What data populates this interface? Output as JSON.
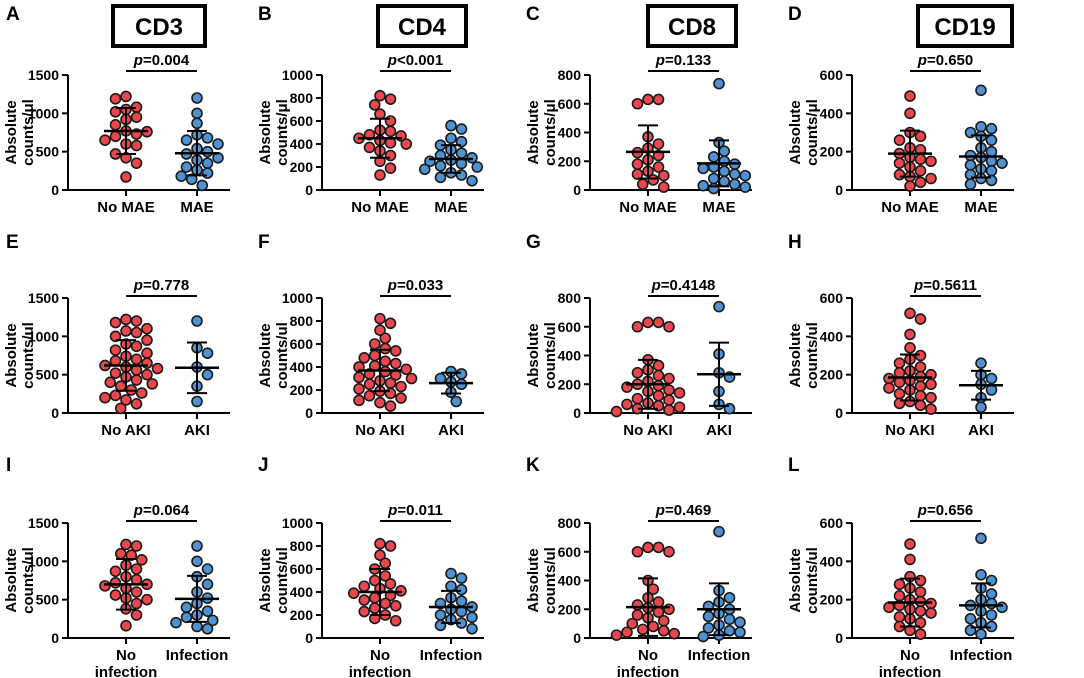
{
  "figure": {
    "markers": [
      "CD3",
      "CD4",
      "CD8",
      "CD19"
    ],
    "colors": {
      "group_a": "#e8474d",
      "group_b": "#4f92d1",
      "stroke": "#1a1a1a",
      "axis": "#000000"
    }
  },
  "chart_data": [
    {
      "panel": "A",
      "type": "scatter",
      "title": "CD3",
      "ylabel": [
        "Absolute",
        "counts/μl"
      ],
      "ylim": [
        0,
        1500
      ],
      "yticks": [
        "0",
        "500",
        "1000",
        "1500"
      ],
      "categories": [
        [
          "No MAE"
        ],
        [
          "MAE"
        ]
      ],
      "pvalue": "=0.004",
      "series": [
        {
          "name": "No MAE",
          "mean": 770,
          "sd": 300,
          "values": [
            1220,
            1050,
            1080,
            1020,
            1190,
            950,
            920,
            850,
            770,
            730,
            760,
            700,
            650,
            600,
            580,
            420,
            470,
            350,
            170
          ]
        },
        {
          "name": "MAE",
          "mean": 480,
          "sd": 290,
          "values": [
            1200,
            1000,
            870,
            720,
            680,
            650,
            600,
            540,
            500,
            470,
            420,
            390,
            350,
            300,
            260,
            220,
            180,
            140,
            60
          ]
        }
      ]
    },
    {
      "panel": "B",
      "type": "scatter",
      "title": "CD4",
      "ylabel": [
        "Absolute",
        "counts/μl"
      ],
      "ylim": [
        0,
        1000
      ],
      "yticks": [
        "0",
        "200",
        "400",
        "600",
        "800",
        "1000"
      ],
      "categories": [
        [
          "No MAE"
        ],
        [
          "MAE"
        ]
      ],
      "pvalue": "<0.001",
      "series": [
        {
          "name": "No MAE",
          "mean": 450,
          "sd": 170,
          "values": [
            820,
            790,
            740,
            660,
            600,
            520,
            510,
            480,
            470,
            450,
            430,
            410,
            400,
            370,
            340,
            300,
            250,
            190,
            130
          ]
        },
        {
          "name": "MAE",
          "mean": 270,
          "sd": 120,
          "values": [
            560,
            530,
            450,
            420,
            390,
            350,
            320,
            300,
            280,
            260,
            250,
            230,
            210,
            200,
            180,
            150,
            130,
            110,
            80
          ]
        }
      ]
    },
    {
      "panel": "C",
      "type": "scatter",
      "title": "CD8",
      "ylabel": [
        "Absolute",
        "counts/μl"
      ],
      "ylim": [
        0,
        800
      ],
      "yticks": [
        "0",
        "200",
        "400",
        "600",
        "800"
      ],
      "categories": [
        [
          "No MAE"
        ],
        [
          "MAE"
        ]
      ],
      "pvalue": "=0.133",
      "series": [
        {
          "name": "No MAE",
          "mean": 265,
          "sd": 185,
          "values": [
            630,
            630,
            600,
            370,
            320,
            290,
            260,
            240,
            210,
            180,
            160,
            130,
            110,
            100,
            70,
            40,
            20
          ]
        },
        {
          "name": "MAE",
          "mean": 185,
          "sd": 160,
          "values": [
            740,
            330,
            270,
            230,
            200,
            180,
            160,
            150,
            130,
            110,
            100,
            80,
            60,
            40,
            30,
            20,
            10
          ]
        }
      ]
    },
    {
      "panel": "D",
      "type": "scatter",
      "title": "CD19",
      "ylabel": [
        "Absolute",
        "counts/μl"
      ],
      "ylim": [
        0,
        600
      ],
      "yticks": [
        "0",
        "200",
        "400",
        "600"
      ],
      "categories": [
        [
          "No MAE"
        ],
        [
          "MAE"
        ]
      ],
      "pvalue": "=0.650",
      "series": [
        {
          "name": "No MAE",
          "mean": 190,
          "sd": 120,
          "values": [
            490,
            400,
            300,
            280,
            260,
            220,
            210,
            190,
            170,
            160,
            150,
            140,
            120,
            100,
            80,
            70,
            60,
            40,
            20
          ]
        },
        {
          "name": "MAE",
          "mean": 175,
          "sd": 110,
          "values": [
            520,
            330,
            320,
            300,
            280,
            260,
            220,
            200,
            180,
            170,
            150,
            140,
            130,
            110,
            100,
            80,
            60,
            50,
            30
          ]
        }
      ]
    },
    {
      "panel": "E",
      "type": "scatter",
      "ylabel": [
        "Absolute",
        "counts/ul"
      ],
      "ylim": [
        0,
        1500
      ],
      "yticks": [
        "0",
        "500",
        "1000",
        "1500"
      ],
      "categories": [
        [
          "No AKI"
        ],
        [
          "AKI"
        ]
      ],
      "pvalue": "=0.778",
      "series": [
        {
          "name": "No AKI",
          "mean": 620,
          "sd": 330,
          "values": [
            1220,
            1200,
            1180,
            1100,
            1070,
            1050,
            1000,
            950,
            900,
            870,
            820,
            780,
            740,
            700,
            680,
            650,
            620,
            600,
            580,
            560,
            520,
            500,
            470,
            430,
            400,
            380,
            350,
            300,
            260,
            230,
            200,
            170,
            120,
            60
          ]
        },
        {
          "name": "AKI",
          "mean": 590,
          "sd": 330,
          "values": [
            1200,
            850,
            780,
            600,
            500,
            350,
            150
          ]
        }
      ]
    },
    {
      "panel": "F",
      "type": "scatter",
      "ylabel": [
        "Absolute",
        "counts/ul"
      ],
      "ylim": [
        0,
        1000
      ],
      "yticks": [
        "0",
        "200",
        "400",
        "600",
        "800",
        "1000"
      ],
      "categories": [
        [
          "No AKI"
        ],
        [
          "AKI"
        ]
      ],
      "pvalue": "=0.033",
      "series": [
        {
          "name": "No AKI",
          "mean": 370,
          "sd": 180,
          "values": [
            820,
            780,
            720,
            650,
            600,
            560,
            540,
            500,
            480,
            450,
            430,
            410,
            400,
            380,
            360,
            340,
            330,
            310,
            300,
            280,
            260,
            250,
            230,
            210,
            190,
            170,
            150,
            130,
            110,
            90,
            60
          ]
        },
        {
          "name": "AKI",
          "mean": 260,
          "sd": 90,
          "values": [
            360,
            340,
            300,
            270,
            250,
            180,
            100
          ]
        }
      ]
    },
    {
      "panel": "G",
      "type": "scatter",
      "ylabel": [
        "Absolute",
        "counts/ul"
      ],
      "ylim": [
        0,
        800
      ],
      "yticks": [
        "0",
        "200",
        "400",
        "600",
        "800"
      ],
      "categories": [
        [
          "No AKI"
        ],
        [
          "AKI"
        ]
      ],
      "pvalue": "=0.4148",
      "series": [
        {
          "name": "No AKI",
          "mean": 200,
          "sd": 170,
          "values": [
            630,
            630,
            600,
            600,
            370,
            330,
            300,
            280,
            260,
            240,
            220,
            200,
            190,
            180,
            160,
            150,
            140,
            120,
            100,
            90,
            70,
            60,
            50,
            40,
            30,
            20,
            10
          ]
        },
        {
          "name": "AKI",
          "mean": 270,
          "sd": 220,
          "values": [
            740,
            410,
            280,
            250,
            150,
            60,
            30
          ]
        }
      ]
    },
    {
      "panel": "H",
      "type": "scatter",
      "ylabel": [
        "Absolute",
        "counts/ul"
      ],
      "ylim": [
        0,
        600
      ],
      "yticks": [
        "0",
        "200",
        "400",
        "600"
      ],
      "categories": [
        [
          "No AKI"
        ],
        [
          "AKI"
        ]
      ],
      "pvalue": "=0.5611",
      "series": [
        {
          "name": "No AKI",
          "mean": 185,
          "sd": 120,
          "values": [
            520,
            490,
            410,
            340,
            300,
            280,
            260,
            240,
            220,
            210,
            200,
            190,
            180,
            170,
            160,
            150,
            140,
            130,
            120,
            100,
            90,
            80,
            60,
            50,
            40,
            20
          ]
        },
        {
          "name": "AKI",
          "mean": 145,
          "sd": 75,
          "values": [
            260,
            200,
            180,
            150,
            120,
            80,
            30
          ]
        }
      ]
    },
    {
      "panel": "I",
      "type": "scatter",
      "ylabel": [
        "Absolute",
        "counts/ul"
      ],
      "ylim": [
        0,
        1500
      ],
      "yticks": [
        "0",
        "500",
        "1000",
        "1500"
      ],
      "categories": [
        [
          "No",
          "infection"
        ],
        [
          "Infection"
        ]
      ],
      "pvalue": "=0.064",
      "series": [
        {
          "name": "No infection",
          "mean": 700,
          "sd": 330,
          "values": [
            1220,
            1200,
            1100,
            1080,
            1020,
            950,
            900,
            870,
            800,
            760,
            720,
            700,
            680,
            650,
            600,
            560,
            520,
            500,
            450,
            380,
            300,
            160
          ]
        },
        {
          "name": "Infection",
          "mean": 510,
          "sd": 300,
          "values": [
            1200,
            1000,
            900,
            800,
            700,
            600,
            520,
            450,
            400,
            350,
            300,
            270,
            230,
            200,
            150,
            120
          ]
        }
      ]
    },
    {
      "panel": "J",
      "type": "scatter",
      "ylabel": [
        "Absolute",
        "counts/ul"
      ],
      "ylim": [
        0,
        1000
      ],
      "yticks": [
        "0",
        "200",
        "400",
        "600",
        "800",
        "1000"
      ],
      "categories": [
        [
          "No",
          "infection"
        ],
        [
          "Infection"
        ]
      ],
      "pvalue": "=0.011",
      "series": [
        {
          "name": "No infection",
          "mean": 400,
          "sd": 200,
          "values": [
            820,
            800,
            720,
            650,
            600,
            540,
            500,
            470,
            450,
            430,
            410,
            390,
            370,
            350,
            330,
            300,
            280,
            260,
            230,
            200,
            170,
            150
          ]
        },
        {
          "name": "Infection",
          "mean": 270,
          "sd": 140,
          "values": [
            560,
            520,
            450,
            420,
            350,
            320,
            300,
            270,
            250,
            230,
            200,
            180,
            160,
            130,
            110,
            80
          ]
        }
      ]
    },
    {
      "panel": "K",
      "type": "scatter",
      "ylabel": [
        "Absolute",
        "counts/ul"
      ],
      "ylim": [
        0,
        800
      ],
      "yticks": [
        "0",
        "200",
        "400",
        "600",
        "800"
      ],
      "categories": [
        [
          "No",
          "infection"
        ],
        [
          "Infection"
        ]
      ],
      "pvalue": "=0.469",
      "series": [
        {
          "name": "No infection",
          "mean": 215,
          "sd": 200,
          "values": [
            630,
            630,
            600,
            600,
            400,
            340,
            280,
            250,
            230,
            210,
            200,
            180,
            160,
            140,
            120,
            100,
            80,
            60,
            50,
            40,
            30,
            20
          ]
        },
        {
          "name": "Infection",
          "mean": 200,
          "sd": 180,
          "values": [
            740,
            330,
            280,
            250,
            220,
            200,
            170,
            150,
            130,
            110,
            90,
            70,
            50,
            40,
            20,
            10
          ]
        }
      ]
    },
    {
      "panel": "L",
      "type": "scatter",
      "ylabel": [
        "Absolute",
        "counts/ul"
      ],
      "ylim": [
        0,
        600
      ],
      "yticks": [
        "0",
        "200",
        "400",
        "600"
      ],
      "categories": [
        [
          "No",
          "infection"
        ],
        [
          "Infection"
        ]
      ],
      "pvalue": "=0.656",
      "series": [
        {
          "name": "No infection",
          "mean": 185,
          "sd": 125,
          "values": [
            490,
            410,
            320,
            300,
            280,
            260,
            240,
            220,
            200,
            190,
            180,
            170,
            160,
            150,
            140,
            130,
            110,
            100,
            80,
            60,
            40,
            20
          ]
        },
        {
          "name": "Infection",
          "mean": 170,
          "sd": 115,
          "values": [
            520,
            330,
            300,
            260,
            230,
            200,
            180,
            170,
            160,
            140,
            120,
            100,
            80,
            60,
            40,
            20
          ]
        }
      ]
    }
  ]
}
